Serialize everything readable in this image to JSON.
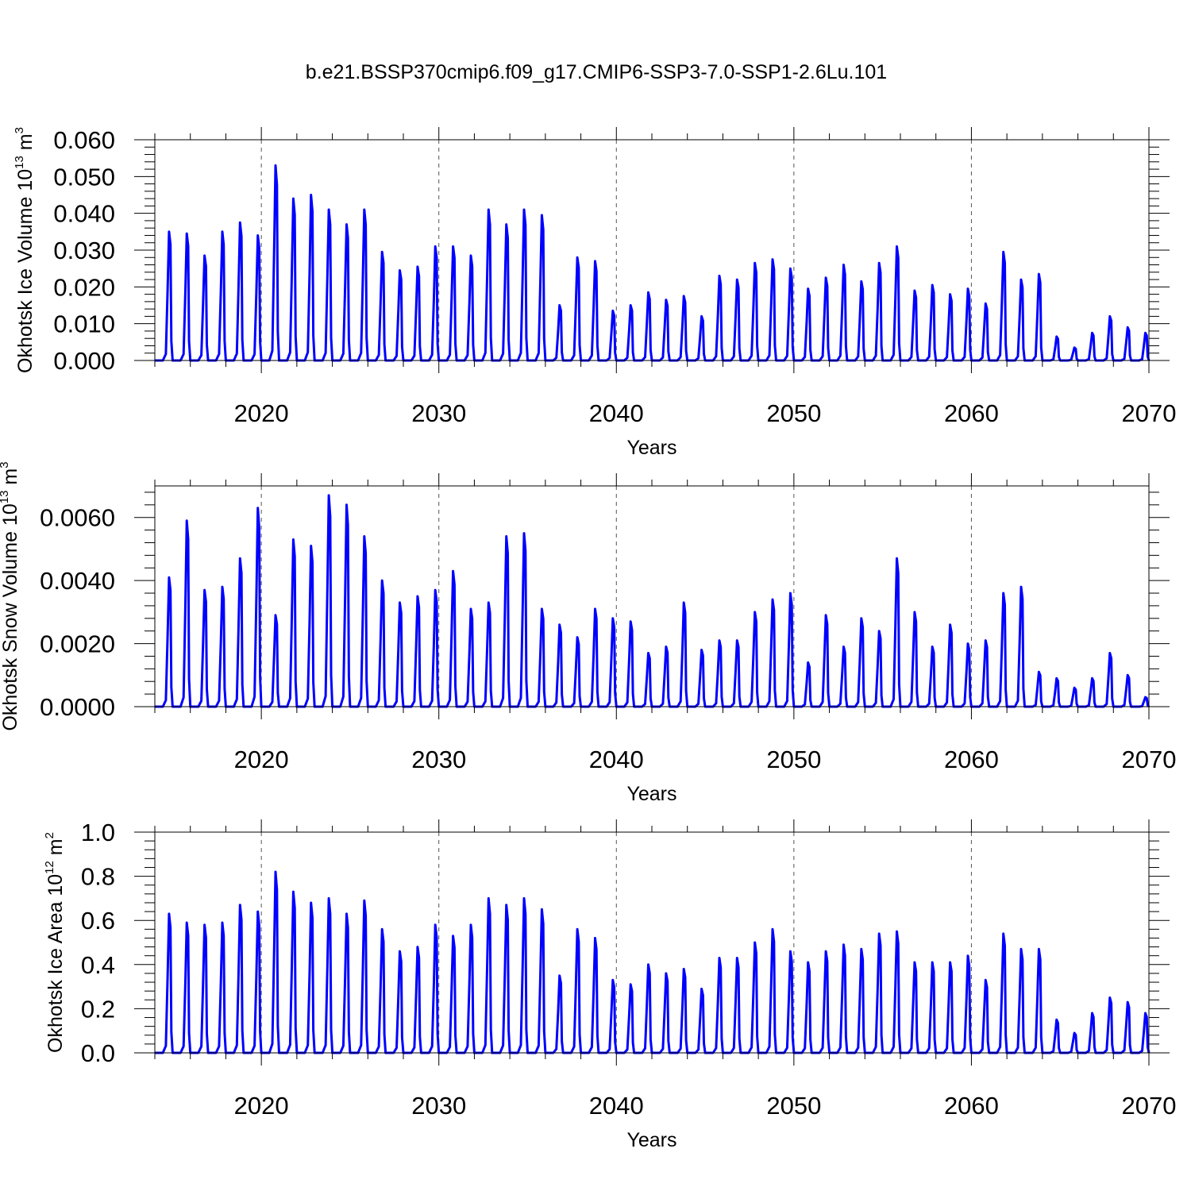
{
  "title": "b.e21.BSSP370cmip6.f09_g17.CMIP6-SSP3-7.0-SSP1-2.6Lu.101",
  "chart_data": [
    {
      "type": "line",
      "ylabel": {
        "text": "Okhotsk Ice Volume 10",
        "exp": "13",
        "unit": " m",
        "unit_exp": "3"
      },
      "xlabel": "Years",
      "xlim": [
        2014,
        2070
      ],
      "ylim": [
        0,
        0.06
      ],
      "xticks": [
        2020,
        2030,
        2040,
        2050,
        2060,
        2070
      ],
      "xtick_labels": [
        "2020",
        "2030",
        "2040",
        "2050",
        "2060",
        "2070"
      ],
      "yticks": [
        0,
        0.01,
        0.02,
        0.03,
        0.04,
        0.05,
        0.06
      ],
      "ytick_labels": [
        "0.000",
        "0.010",
        "0.020",
        "0.030",
        "0.040",
        "0.050",
        "0.060"
      ],
      "vgrid_years": [
        2020,
        2030,
        2040,
        2050,
        2060
      ],
      "series": [
        {
          "color": "#0000ff",
          "annual_peaks": [
            {
              "year": 2014,
              "value": 0.035
            },
            {
              "year": 2015,
              "value": 0.0345
            },
            {
              "year": 2016,
              "value": 0.0285
            },
            {
              "year": 2017,
              "value": 0.035
            },
            {
              "year": 2018,
              "value": 0.0375
            },
            {
              "year": 2019,
              "value": 0.034
            },
            {
              "year": 2020,
              "value": 0.053
            },
            {
              "year": 2021,
              "value": 0.044
            },
            {
              "year": 2022,
              "value": 0.045
            },
            {
              "year": 2023,
              "value": 0.041
            },
            {
              "year": 2024,
              "value": 0.037
            },
            {
              "year": 2025,
              "value": 0.041
            },
            {
              "year": 2026,
              "value": 0.0295
            },
            {
              "year": 2027,
              "value": 0.0245
            },
            {
              "year": 2028,
              "value": 0.0255
            },
            {
              "year": 2029,
              "value": 0.031
            },
            {
              "year": 2030,
              "value": 0.031
            },
            {
              "year": 2031,
              "value": 0.0285
            },
            {
              "year": 2032,
              "value": 0.041
            },
            {
              "year": 2033,
              "value": 0.037
            },
            {
              "year": 2034,
              "value": 0.041
            },
            {
              "year": 2035,
              "value": 0.0395
            },
            {
              "year": 2036,
              "value": 0.015
            },
            {
              "year": 2037,
              "value": 0.028
            },
            {
              "year": 2038,
              "value": 0.027
            },
            {
              "year": 2039,
              "value": 0.0135
            },
            {
              "year": 2040,
              "value": 0.015
            },
            {
              "year": 2041,
              "value": 0.0185
            },
            {
              "year": 2042,
              "value": 0.0165
            },
            {
              "year": 2043,
              "value": 0.0175
            },
            {
              "year": 2044,
              "value": 0.012
            },
            {
              "year": 2045,
              "value": 0.023
            },
            {
              "year": 2046,
              "value": 0.022
            },
            {
              "year": 2047,
              "value": 0.0265
            },
            {
              "year": 2048,
              "value": 0.0275
            },
            {
              "year": 2049,
              "value": 0.025
            },
            {
              "year": 2050,
              "value": 0.0195
            },
            {
              "year": 2051,
              "value": 0.0225
            },
            {
              "year": 2052,
              "value": 0.026
            },
            {
              "year": 2053,
              "value": 0.0215
            },
            {
              "year": 2054,
              "value": 0.0265
            },
            {
              "year": 2055,
              "value": 0.031
            },
            {
              "year": 2056,
              "value": 0.019
            },
            {
              "year": 2057,
              "value": 0.0205
            },
            {
              "year": 2058,
              "value": 0.018
            },
            {
              "year": 2059,
              "value": 0.0195
            },
            {
              "year": 2060,
              "value": 0.0155
            },
            {
              "year": 2061,
              "value": 0.0295
            },
            {
              "year": 2062,
              "value": 0.022
            },
            {
              "year": 2063,
              "value": 0.0235
            },
            {
              "year": 2064,
              "value": 0.0065
            },
            {
              "year": 2065,
              "value": 0.0035
            },
            {
              "year": 2066,
              "value": 0.0075
            },
            {
              "year": 2067,
              "value": 0.012
            },
            {
              "year": 2068,
              "value": 0.009
            },
            {
              "year": 2069,
              "value": 0.0075
            }
          ]
        }
      ]
    },
    {
      "type": "line",
      "ylabel": {
        "text": "Okhotsk Snow Volume 10",
        "exp": "13",
        "unit": " m",
        "unit_exp": "3"
      },
      "xlabel": "Years",
      "xlim": [
        2014,
        2070
      ],
      "ylim": [
        0,
        0.007
      ],
      "xticks": [
        2020,
        2030,
        2040,
        2050,
        2060,
        2070
      ],
      "xtick_labels": [
        "2020",
        "2030",
        "2040",
        "2050",
        "2060",
        "2070"
      ],
      "yticks": [
        0,
        0.002,
        0.004,
        0.006
      ],
      "ytick_labels": [
        "0.0000",
        "0.0020",
        "0.0040",
        "0.0060"
      ],
      "vgrid_years": [
        2020,
        2030,
        2040,
        2050,
        2060
      ],
      "series": [
        {
          "color": "#0000ff",
          "annual_peaks": [
            {
              "year": 2014,
              "value": 0.0041
            },
            {
              "year": 2015,
              "value": 0.0059
            },
            {
              "year": 2016,
              "value": 0.0037
            },
            {
              "year": 2017,
              "value": 0.0038
            },
            {
              "year": 2018,
              "value": 0.0047
            },
            {
              "year": 2019,
              "value": 0.0063
            },
            {
              "year": 2020,
              "value": 0.0029
            },
            {
              "year": 2021,
              "value": 0.0053
            },
            {
              "year": 2022,
              "value": 0.0051
            },
            {
              "year": 2023,
              "value": 0.0067
            },
            {
              "year": 2024,
              "value": 0.0064
            },
            {
              "year": 2025,
              "value": 0.0054
            },
            {
              "year": 2026,
              "value": 0.004
            },
            {
              "year": 2027,
              "value": 0.0033
            },
            {
              "year": 2028,
              "value": 0.0035
            },
            {
              "year": 2029,
              "value": 0.0037
            },
            {
              "year": 2030,
              "value": 0.0043
            },
            {
              "year": 2031,
              "value": 0.0031
            },
            {
              "year": 2032,
              "value": 0.0033
            },
            {
              "year": 2033,
              "value": 0.0054
            },
            {
              "year": 2034,
              "value": 0.0055
            },
            {
              "year": 2035,
              "value": 0.0031
            },
            {
              "year": 2036,
              "value": 0.0026
            },
            {
              "year": 2037,
              "value": 0.0022
            },
            {
              "year": 2038,
              "value": 0.0031
            },
            {
              "year": 2039,
              "value": 0.0028
            },
            {
              "year": 2040,
              "value": 0.0027
            },
            {
              "year": 2041,
              "value": 0.0017
            },
            {
              "year": 2042,
              "value": 0.0019
            },
            {
              "year": 2043,
              "value": 0.0033
            },
            {
              "year": 2044,
              "value": 0.0018
            },
            {
              "year": 2045,
              "value": 0.0021
            },
            {
              "year": 2046,
              "value": 0.0021
            },
            {
              "year": 2047,
              "value": 0.003
            },
            {
              "year": 2048,
              "value": 0.0034
            },
            {
              "year": 2049,
              "value": 0.0036
            },
            {
              "year": 2050,
              "value": 0.0014
            },
            {
              "year": 2051,
              "value": 0.0029
            },
            {
              "year": 2052,
              "value": 0.0019
            },
            {
              "year": 2053,
              "value": 0.0028
            },
            {
              "year": 2054,
              "value": 0.0024
            },
            {
              "year": 2055,
              "value": 0.0047
            },
            {
              "year": 2056,
              "value": 0.003
            },
            {
              "year": 2057,
              "value": 0.0019
            },
            {
              "year": 2058,
              "value": 0.0026
            },
            {
              "year": 2059,
              "value": 0.002
            },
            {
              "year": 2060,
              "value": 0.0021
            },
            {
              "year": 2061,
              "value": 0.0036
            },
            {
              "year": 2062,
              "value": 0.0038
            },
            {
              "year": 2063,
              "value": 0.0011
            },
            {
              "year": 2064,
              "value": 0.0009
            },
            {
              "year": 2065,
              "value": 0.0006
            },
            {
              "year": 2066,
              "value": 0.0009
            },
            {
              "year": 2067,
              "value": 0.0017
            },
            {
              "year": 2068,
              "value": 0.001
            },
            {
              "year": 2069,
              "value": 0.0003
            }
          ]
        }
      ]
    },
    {
      "type": "line",
      "ylabel": {
        "text": "Okhotsk Ice Area 10",
        "exp": "12",
        "unit": " m",
        "unit_exp": "2"
      },
      "xlabel": "Years",
      "xlim": [
        2014,
        2070
      ],
      "ylim": [
        0,
        1.0
      ],
      "xticks": [
        2020,
        2030,
        2040,
        2050,
        2060,
        2070
      ],
      "xtick_labels": [
        "2020",
        "2030",
        "2040",
        "2050",
        "2060",
        "2070"
      ],
      "yticks": [
        0,
        0.2,
        0.4,
        0.6,
        0.8,
        1.0
      ],
      "ytick_labels": [
        "0.0",
        "0.2",
        "0.4",
        "0.6",
        "0.8",
        "1.0"
      ],
      "vgrid_years": [
        2020,
        2030,
        2040,
        2050,
        2060
      ],
      "series": [
        {
          "color": "#0000ff",
          "annual_peaks": [
            {
              "year": 2014,
              "value": 0.63
            },
            {
              "year": 2015,
              "value": 0.59
            },
            {
              "year": 2016,
              "value": 0.58
            },
            {
              "year": 2017,
              "value": 0.59
            },
            {
              "year": 2018,
              "value": 0.67
            },
            {
              "year": 2019,
              "value": 0.64
            },
            {
              "year": 2020,
              "value": 0.82
            },
            {
              "year": 2021,
              "value": 0.73
            },
            {
              "year": 2022,
              "value": 0.68
            },
            {
              "year": 2023,
              "value": 0.7
            },
            {
              "year": 2024,
              "value": 0.63
            },
            {
              "year": 2025,
              "value": 0.69
            },
            {
              "year": 2026,
              "value": 0.56
            },
            {
              "year": 2027,
              "value": 0.46
            },
            {
              "year": 2028,
              "value": 0.48
            },
            {
              "year": 2029,
              "value": 0.58
            },
            {
              "year": 2030,
              "value": 0.53
            },
            {
              "year": 2031,
              "value": 0.58
            },
            {
              "year": 2032,
              "value": 0.7
            },
            {
              "year": 2033,
              "value": 0.67
            },
            {
              "year": 2034,
              "value": 0.7
            },
            {
              "year": 2035,
              "value": 0.65
            },
            {
              "year": 2036,
              "value": 0.35
            },
            {
              "year": 2037,
              "value": 0.56
            },
            {
              "year": 2038,
              "value": 0.52
            },
            {
              "year": 2039,
              "value": 0.33
            },
            {
              "year": 2040,
              "value": 0.31
            },
            {
              "year": 2041,
              "value": 0.4
            },
            {
              "year": 2042,
              "value": 0.36
            },
            {
              "year": 2043,
              "value": 0.38
            },
            {
              "year": 2044,
              "value": 0.29
            },
            {
              "year": 2045,
              "value": 0.43
            },
            {
              "year": 2046,
              "value": 0.43
            },
            {
              "year": 2047,
              "value": 0.5
            },
            {
              "year": 2048,
              "value": 0.56
            },
            {
              "year": 2049,
              "value": 0.46
            },
            {
              "year": 2050,
              "value": 0.41
            },
            {
              "year": 2051,
              "value": 0.46
            },
            {
              "year": 2052,
              "value": 0.49
            },
            {
              "year": 2053,
              "value": 0.47
            },
            {
              "year": 2054,
              "value": 0.54
            },
            {
              "year": 2055,
              "value": 0.55
            },
            {
              "year": 2056,
              "value": 0.41
            },
            {
              "year": 2057,
              "value": 0.41
            },
            {
              "year": 2058,
              "value": 0.41
            },
            {
              "year": 2059,
              "value": 0.44
            },
            {
              "year": 2060,
              "value": 0.33
            },
            {
              "year": 2061,
              "value": 0.54
            },
            {
              "year": 2062,
              "value": 0.47
            },
            {
              "year": 2063,
              "value": 0.47
            },
            {
              "year": 2064,
              "value": 0.15
            },
            {
              "year": 2065,
              "value": 0.09
            },
            {
              "year": 2066,
              "value": 0.18
            },
            {
              "year": 2067,
              "value": 0.25
            },
            {
              "year": 2068,
              "value": 0.23
            },
            {
              "year": 2069,
              "value": 0.18
            }
          ]
        }
      ]
    }
  ]
}
